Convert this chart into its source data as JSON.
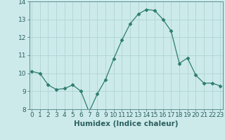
{
  "x": [
    0,
    1,
    2,
    3,
    4,
    5,
    6,
    7,
    8,
    9,
    10,
    11,
    12,
    13,
    14,
    15,
    16,
    17,
    18,
    19,
    20,
    21,
    22,
    23
  ],
  "y": [
    10.1,
    10.0,
    9.35,
    9.1,
    9.15,
    9.35,
    9.0,
    7.85,
    8.85,
    9.65,
    10.8,
    11.85,
    12.75,
    13.3,
    13.55,
    13.5,
    13.0,
    12.35,
    10.55,
    10.85,
    9.9,
    9.45,
    9.45,
    9.3
  ],
  "line_color": "#2d7d6e",
  "marker": "D",
  "marker_size": 2.5,
  "bg_color": "#cdeaea",
  "grid_color": "#b0d4d4",
  "xlabel": "Humidex (Indice chaleur)",
  "ylim": [
    8,
    14
  ],
  "xlim": [
    -0.3,
    23.3
  ],
  "yticks": [
    8,
    9,
    10,
    11,
    12,
    13,
    14
  ],
  "xticks": [
    0,
    1,
    2,
    3,
    4,
    5,
    6,
    7,
    8,
    9,
    10,
    11,
    12,
    13,
    14,
    15,
    16,
    17,
    18,
    19,
    20,
    21,
    22,
    23
  ],
  "tick_fontsize": 6.5,
  "xlabel_fontsize": 7.5,
  "axis_color": "#2d7d6e",
  "tick_color": "#2d6060",
  "spine_color": "#5a9090"
}
